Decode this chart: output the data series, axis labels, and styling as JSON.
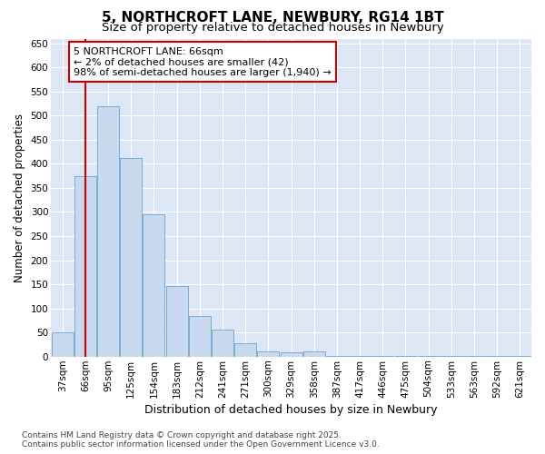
{
  "title1": "5, NORTHCROFT LANE, NEWBURY, RG14 1BT",
  "title2": "Size of property relative to detached houses in Newbury",
  "xlabel": "Distribution of detached houses by size in Newbury",
  "ylabel": "Number of detached properties",
  "categories": [
    "37sqm",
    "66sqm",
    "95sqm",
    "125sqm",
    "154sqm",
    "183sqm",
    "212sqm",
    "241sqm",
    "271sqm",
    "300sqm",
    "329sqm",
    "358sqm",
    "387sqm",
    "417sqm",
    "446sqm",
    "475sqm",
    "504sqm",
    "533sqm",
    "563sqm",
    "592sqm",
    "621sqm"
  ],
  "values": [
    50,
    375,
    520,
    413,
    295,
    147,
    85,
    55,
    28,
    11,
    8,
    11,
    2,
    2,
    2,
    1,
    1,
    1,
    1,
    1,
    1
  ],
  "bar_color": "#c8d9ef",
  "bar_edge_color": "#7aadd4",
  "vline_index": 1,
  "vline_color": "#cc0000",
  "annotation_text": "5 NORTHCROFT LANE: 66sqm\n← 2% of detached houses are smaller (42)\n98% of semi-detached houses are larger (1,940) →",
  "annotation_box_facecolor": "#ffffff",
  "annotation_box_edgecolor": "#cc0000",
  "ylim": [
    0,
    660
  ],
  "yticks": [
    0,
    50,
    100,
    150,
    200,
    250,
    300,
    350,
    400,
    450,
    500,
    550,
    600,
    650
  ],
  "plot_bg_color": "#dce6f5",
  "fig_bg_color": "#ffffff",
  "grid_color": "#ffffff",
  "footer_text": "Contains HM Land Registry data © Crown copyright and database right 2025.\nContains public sector information licensed under the Open Government Licence v3.0.",
  "title_fontsize": 11,
  "subtitle_fontsize": 9.5,
  "xlabel_fontsize": 9,
  "ylabel_fontsize": 8.5,
  "tick_fontsize": 7.5,
  "annotation_fontsize": 8,
  "footer_fontsize": 6.5
}
